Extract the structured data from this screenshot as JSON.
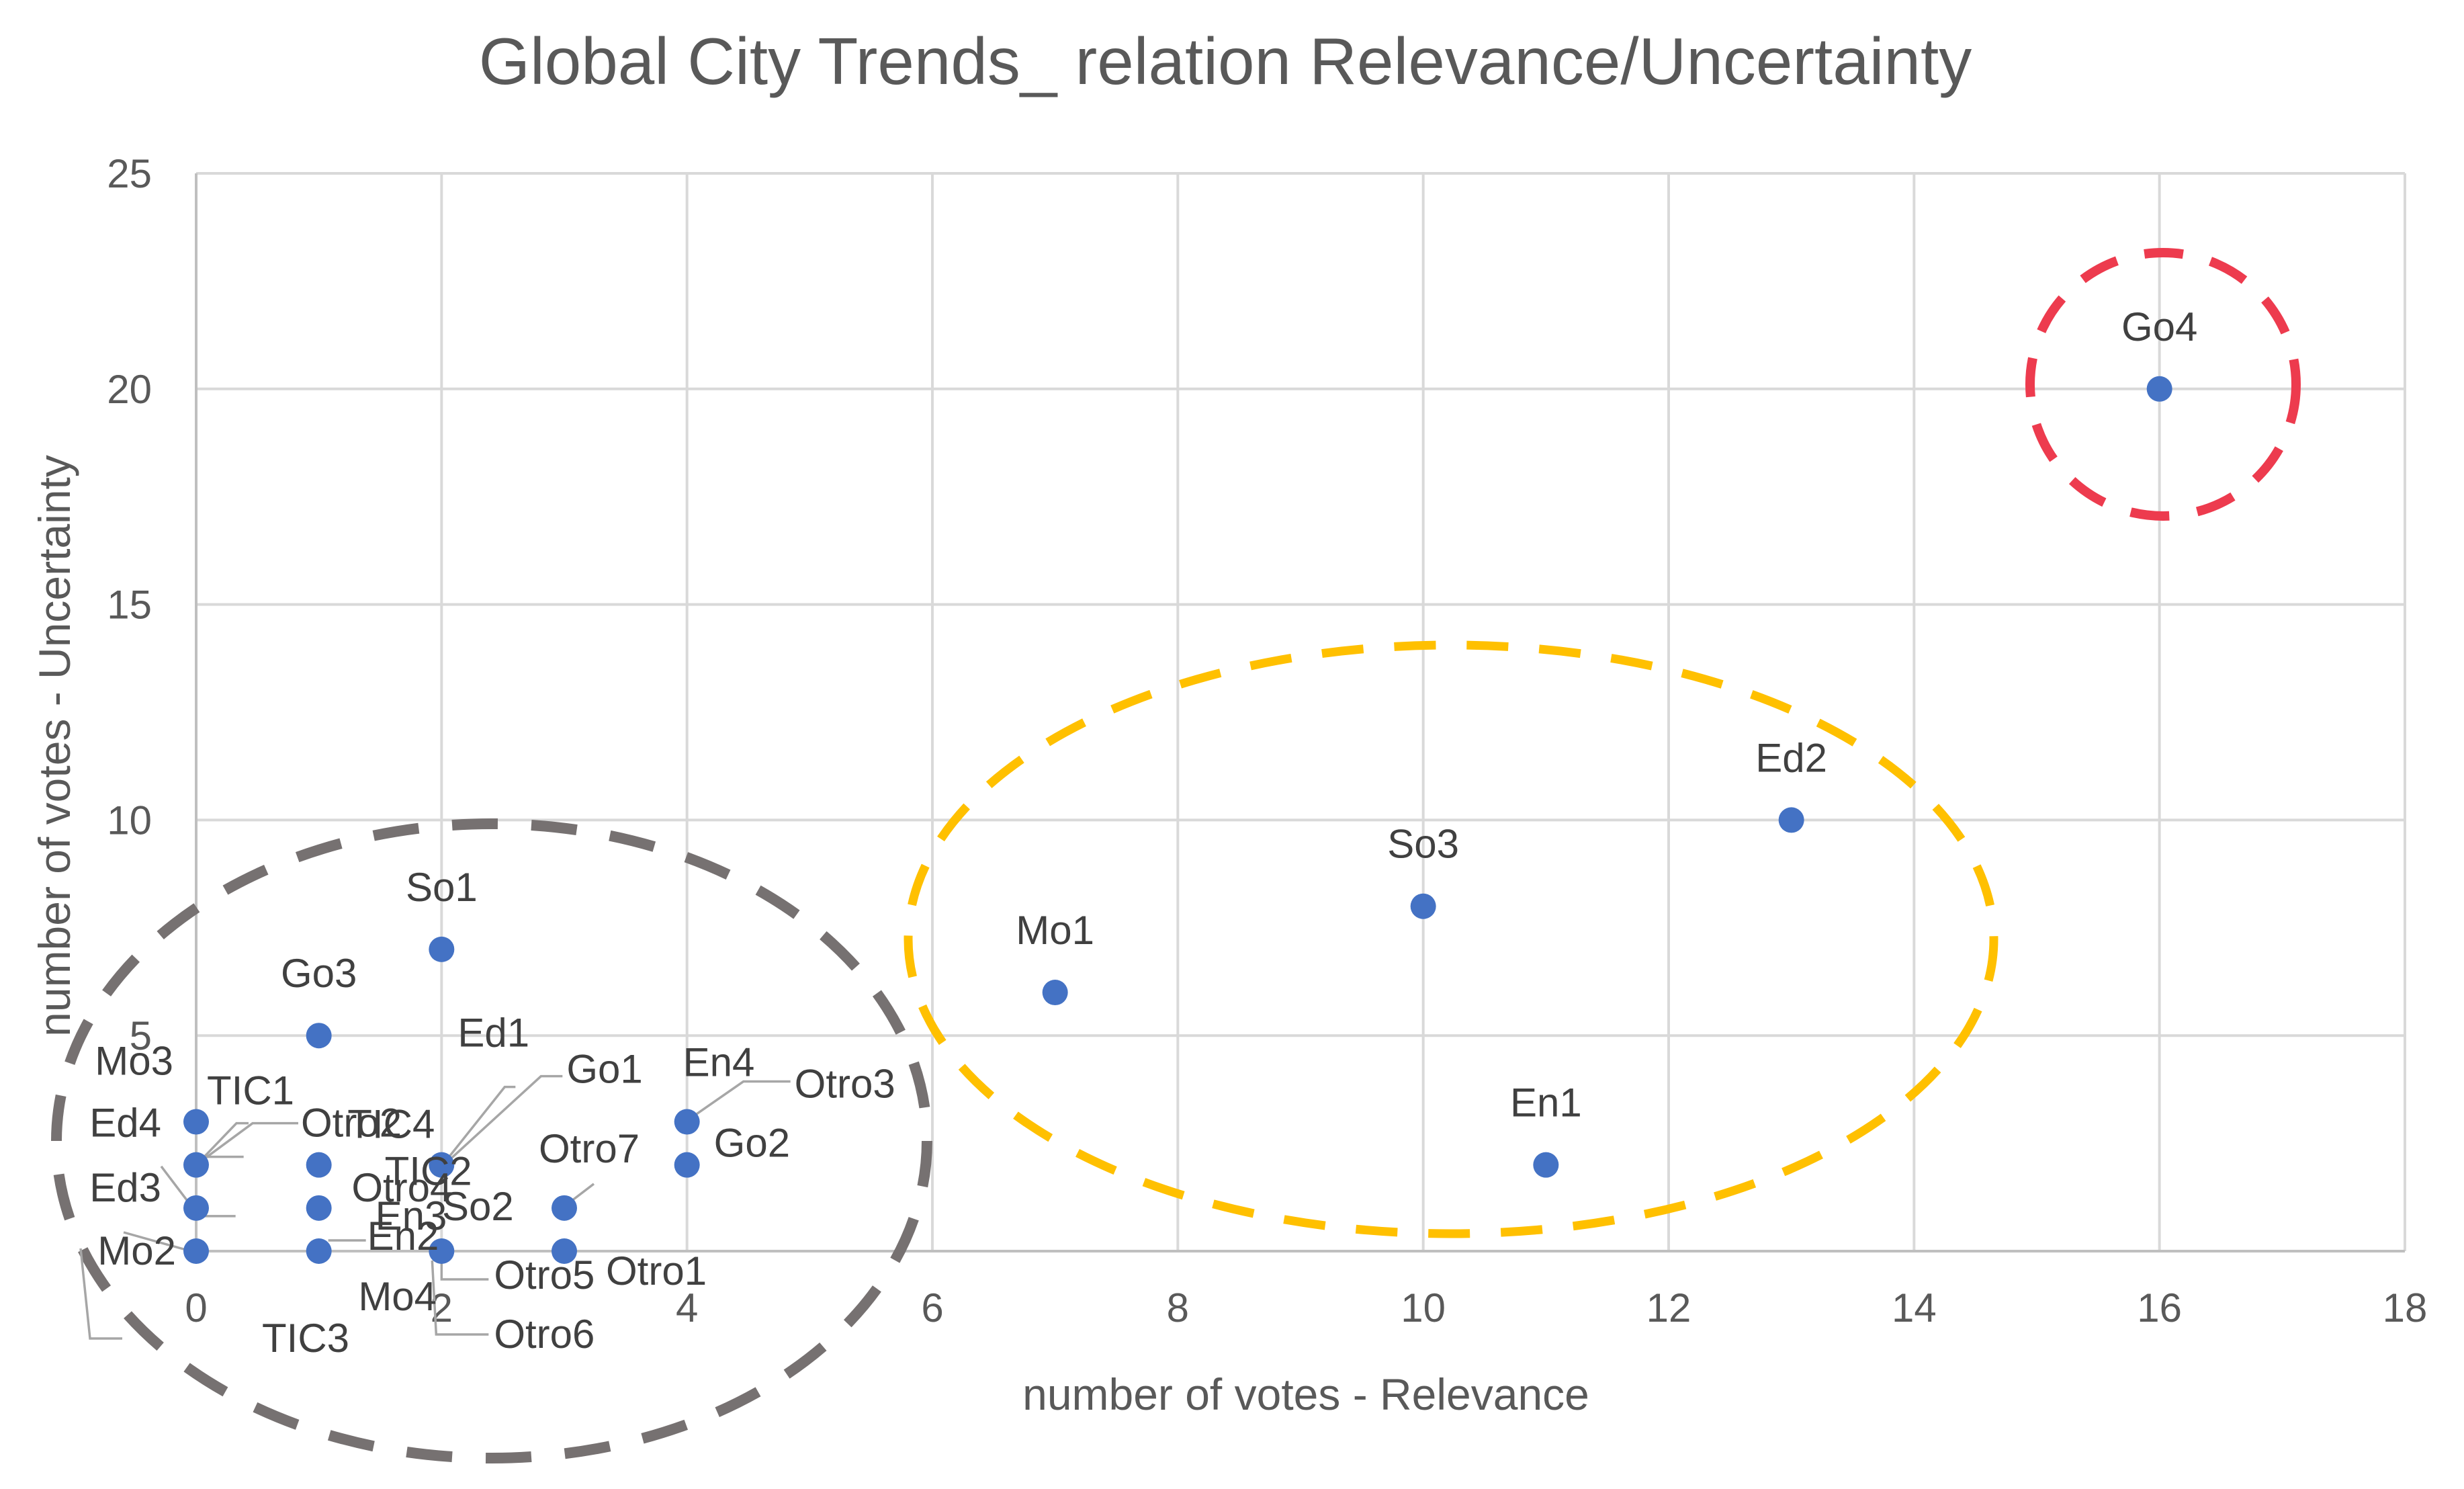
{
  "chart_data": {
    "type": "scatter",
    "title": "Global City Trends_ relation Relevance/Uncertainty",
    "xlabel": "number of votes - Relevance",
    "ylabel": "number of votes - Uncertainty",
    "xlim": [
      0,
      18
    ],
    "ylim": [
      0,
      25
    ],
    "x_ticks": [
      0,
      2,
      4,
      6,
      8,
      10,
      12,
      14,
      16,
      18
    ],
    "y_ticks": [
      5,
      10,
      15,
      20,
      25
    ],
    "grid": true,
    "marker_color": "#4472C4",
    "points": [
      {
        "label": "Go4",
        "x": 16,
        "y": 20
      },
      {
        "label": "Ed2",
        "x": 13,
        "y": 10
      },
      {
        "label": "So3",
        "x": 10,
        "y": 8
      },
      {
        "label": "Mo1",
        "x": 7,
        "y": 6
      },
      {
        "label": "En1",
        "x": 11,
        "y": 2
      },
      {
        "label": "So1",
        "x": 2,
        "y": 7
      },
      {
        "label": "Go3",
        "x": 1,
        "y": 5
      },
      {
        "label": "Mo3",
        "x": 0,
        "y": 3
      },
      {
        "label": "TIC1",
        "x": 0,
        "y": 2
      },
      {
        "label": "Otro2",
        "x": 0,
        "y": 2
      },
      {
        "label": "Ed4",
        "x": 0,
        "y": 2
      },
      {
        "label": "TIC2",
        "x": 1,
        "y": 2
      },
      {
        "label": "Ed3",
        "x": 0,
        "y": 1
      },
      {
        "label": "En3",
        "x": 1,
        "y": 1
      },
      {
        "label": "Mo2",
        "x": 0,
        "y": 0
      },
      {
        "label": "TIC3",
        "x": 0,
        "y": 0
      },
      {
        "label": "En2",
        "x": 1,
        "y": 0
      },
      {
        "label": "Ed1",
        "x": 2,
        "y": 2
      },
      {
        "label": "Go1",
        "x": 2,
        "y": 2
      },
      {
        "label": "TIC4",
        "x": 2,
        "y": 2
      },
      {
        "label": "Otro4",
        "x": 2,
        "y": 0
      },
      {
        "label": "Mo4",
        "x": 2,
        "y": 0
      },
      {
        "label": "Otro5",
        "x": 2,
        "y": 0
      },
      {
        "label": "Otro6",
        "x": 2,
        "y": 0
      },
      {
        "label": "So2",
        "x": 3,
        "y": 1
      },
      {
        "label": "Otro7",
        "x": 3,
        "y": 1
      },
      {
        "label": "Otro1",
        "x": 3,
        "y": 0
      },
      {
        "label": "En4",
        "x": 4,
        "y": 3
      },
      {
        "label": "Otro3",
        "x": 4,
        "y": 3
      },
      {
        "label": "Go2",
        "x": 4,
        "y": 2
      }
    ],
    "clusters": [
      {
        "color": "#ED3B4E",
        "style": "dashed"
      },
      {
        "color": "#FFC000",
        "style": "dashed"
      },
      {
        "color": "#767171",
        "style": "dashed"
      }
    ]
  }
}
